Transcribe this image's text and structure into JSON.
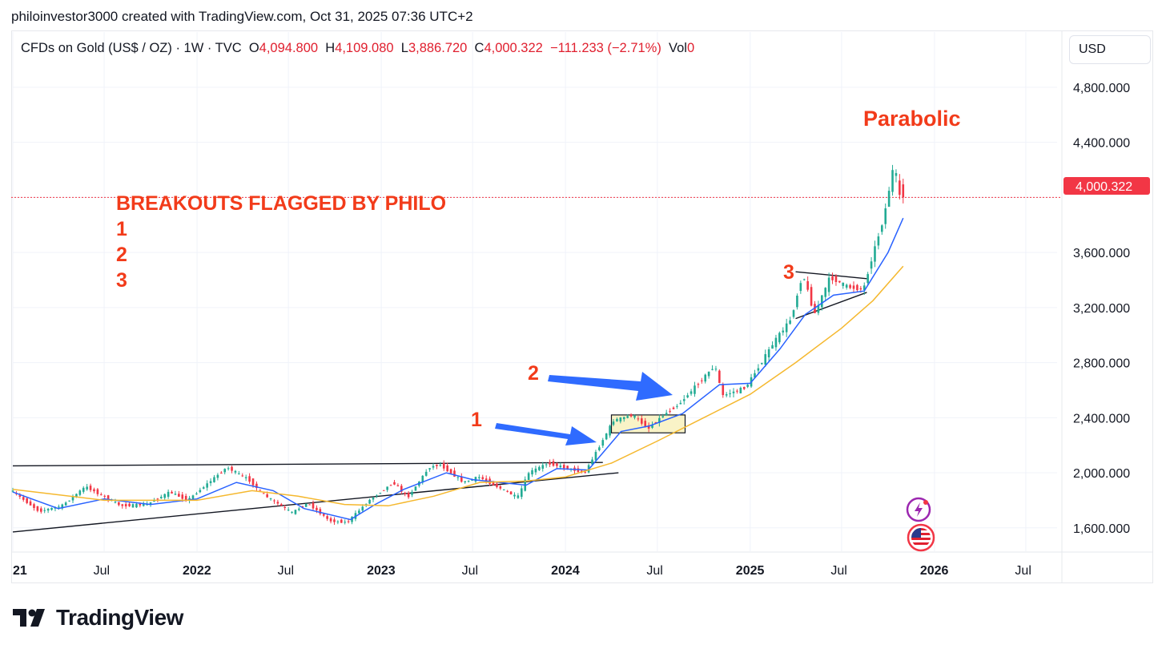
{
  "byline": "philoinvestor3000 created with TradingView.com, Oct 31, 2025 07:36 UTC+2",
  "legend": {
    "symbol": "CFDs on Gold (US$ / OZ) · 1W · TVC",
    "o_label": "O",
    "o_value": "4,094.800",
    "h_label": "H",
    "h_value": "4,109.080",
    "l_label": "L",
    "l_value": "3,886.720",
    "c_label": "C",
    "c_value": "4,000.322",
    "change": "−111.233 (−2.71%)",
    "vol_label": "Vol",
    "vol_value": "0"
  },
  "currency": "USD",
  "price_badge": "4,000.322",
  "footer_brand": "TradingView",
  "icons": [
    "lightning-icon",
    "us-flag-icon",
    "tradingview-logo-icon"
  ],
  "colors": {
    "up": "#22ab94",
    "down": "#f23645",
    "ma_fast": "#2962ff",
    "ma_slow": "#f5b82e",
    "annotation": "#f23b1a",
    "arrow": "#2f6bff",
    "price_line": "#f23645"
  },
  "annotations": {
    "headline": "BREAKOUTS FLAGGED BY PHILO",
    "list": [
      "1",
      "2",
      "3"
    ],
    "parabolic": "Parabolic",
    "marker_1": "1",
    "marker_2": "2",
    "marker_3": "3"
  },
  "chart_data": {
    "type": "candlestick",
    "interval": "1W",
    "y_axis": {
      "ticks": [
        1600,
        2000,
        2400,
        2800,
        3200,
        3600,
        4000,
        4400,
        4800
      ],
      "tick_labels": [
        "1,600.000",
        "2,000.000",
        "2,400.000",
        "2,800.000",
        "3,200.000",
        "3,600.000",
        "4,000.000",
        "4,400.000",
        "4,800.000"
      ],
      "shown_labels": [
        "1,600.000",
        "2,000.000",
        "2,400.000",
        "2,800.000",
        "3,200.000",
        "3,600.000",
        "4,400.000",
        "4,800.000"
      ],
      "range": [
        1430,
        4980
      ]
    },
    "x_axis": {
      "range": [
        "2021-01-01",
        "2026-09-01"
      ],
      "ticks": [
        {
          "label": "21",
          "date": "2021-01-01",
          "bold": true
        },
        {
          "label": "Jul",
          "date": "2021-07-01",
          "bold": false
        },
        {
          "label": "2022",
          "date": "2022-01-01",
          "bold": true
        },
        {
          "label": "Jul",
          "date": "2022-07-01",
          "bold": false
        },
        {
          "label": "2023",
          "date": "2023-01-01",
          "bold": true
        },
        {
          "label": "Jul",
          "date": "2023-07-01",
          "bold": false
        },
        {
          "label": "2024",
          "date": "2024-01-01",
          "bold": true
        },
        {
          "label": "Jul",
          "date": "2024-07-01",
          "bold": false
        },
        {
          "label": "2025",
          "date": "2025-01-01",
          "bold": true
        },
        {
          "label": "Jul",
          "date": "2025-07-01",
          "bold": false
        },
        {
          "label": "2026",
          "date": "2026-01-01",
          "bold": true
        },
        {
          "label": "Jul",
          "date": "2026-07-01",
          "bold": false
        }
      ]
    },
    "last_close": 4000.322,
    "price_path": [
      [
        "2021-01-01",
        1880
      ],
      [
        "2021-03-01",
        1720
      ],
      [
        "2021-04-15",
        1760
      ],
      [
        "2021-06-01",
        1900
      ],
      [
        "2021-08-10",
        1760
      ],
      [
        "2021-09-30",
        1770
      ],
      [
        "2021-11-15",
        1860
      ],
      [
        "2021-12-20",
        1800
      ],
      [
        "2022-03-08",
        2040
      ],
      [
        "2022-04-20",
        1950
      ],
      [
        "2022-05-20",
        1840
      ],
      [
        "2022-07-15",
        1710
      ],
      [
        "2022-08-15",
        1780
      ],
      [
        "2022-09-28",
        1650
      ],
      [
        "2022-11-01",
        1640
      ],
      [
        "2022-12-15",
        1800
      ],
      [
        "2023-02-01",
        1930
      ],
      [
        "2023-03-01",
        1820
      ],
      [
        "2023-04-13",
        2040
      ],
      [
        "2023-05-04",
        2060
      ],
      [
        "2023-06-20",
        1930
      ],
      [
        "2023-07-20",
        1970
      ],
      [
        "2023-10-05",
        1820
      ],
      [
        "2023-10-27",
        2000
      ],
      [
        "2023-12-04",
        2070
      ],
      [
        "2024-02-15",
        2000
      ],
      [
        "2024-04-12",
        2380
      ],
      [
        "2024-05-20",
        2420
      ],
      [
        "2024-06-20",
        2320
      ],
      [
        "2024-07-20",
        2420
      ],
      [
        "2024-08-20",
        2500
      ],
      [
        "2024-10-30",
        2780
      ],
      [
        "2024-11-14",
        2560
      ],
      [
        "2024-12-30",
        2620
      ],
      [
        "2025-02-24",
        2950
      ],
      [
        "2025-03-30",
        3120
      ],
      [
        "2025-04-22",
        3450
      ],
      [
        "2025-05-15",
        3150
      ],
      [
        "2025-06-15",
        3420
      ],
      [
        "2025-07-20",
        3350
      ],
      [
        "2025-08-20",
        3330
      ],
      [
        "2025-09-05",
        3550
      ],
      [
        "2025-09-30",
        3860
      ],
      [
        "2025-10-20",
        4250
      ],
      [
        "2025-10-31",
        4000
      ]
    ],
    "moving_averages": [
      {
        "color": "blue",
        "points": [
          [
            "2021-01-01",
            1860
          ],
          [
            "2021-04-01",
            1740
          ],
          [
            "2021-07-01",
            1810
          ],
          [
            "2021-10-01",
            1770
          ],
          [
            "2022-01-01",
            1810
          ],
          [
            "2022-03-20",
            1930
          ],
          [
            "2022-06-01",
            1870
          ],
          [
            "2022-08-01",
            1740
          ],
          [
            "2022-11-01",
            1660
          ],
          [
            "2022-12-20",
            1770
          ],
          [
            "2023-02-15",
            1880
          ],
          [
            "2023-05-10",
            2000
          ],
          [
            "2023-07-01",
            1950
          ],
          [
            "2023-10-15",
            1910
          ],
          [
            "2023-12-15",
            2030
          ],
          [
            "2024-02-15",
            2020
          ],
          [
            "2024-04-20",
            2300
          ],
          [
            "2024-06-15",
            2340
          ],
          [
            "2024-08-20",
            2430
          ],
          [
            "2024-11-01",
            2640
          ],
          [
            "2025-01-01",
            2650
          ],
          [
            "2025-03-01",
            2900
          ],
          [
            "2025-04-20",
            3150
          ],
          [
            "2025-06-15",
            3290
          ],
          [
            "2025-08-15",
            3320
          ],
          [
            "2025-10-01",
            3600
          ],
          [
            "2025-10-31",
            3850
          ]
        ]
      },
      {
        "color": "yellow",
        "points": [
          [
            "2021-01-01",
            1880
          ],
          [
            "2021-07-01",
            1800
          ],
          [
            "2022-01-01",
            1800
          ],
          [
            "2022-04-20",
            1870
          ],
          [
            "2022-07-20",
            1830
          ],
          [
            "2022-10-20",
            1770
          ],
          [
            "2023-01-15",
            1760
          ],
          [
            "2023-04-15",
            1830
          ],
          [
            "2023-07-15",
            1930
          ],
          [
            "2023-10-15",
            1940
          ],
          [
            "2024-01-01",
            1970
          ],
          [
            "2024-04-01",
            2070
          ],
          [
            "2024-07-01",
            2230
          ],
          [
            "2024-10-01",
            2400
          ],
          [
            "2025-01-01",
            2570
          ],
          [
            "2025-04-01",
            2800
          ],
          [
            "2025-07-01",
            3050
          ],
          [
            "2025-09-01",
            3250
          ],
          [
            "2025-10-31",
            3500
          ]
        ]
      }
    ],
    "trendlines": [
      {
        "name": "upper-resistance",
        "from": [
          "2021-01-01",
          2050
        ],
        "to": [
          "2024-03-15",
          2075
        ]
      },
      {
        "name": "rising-support",
        "from": [
          "2021-01-01",
          1570
        ],
        "to": [
          "2024-04-15",
          2000
        ]
      },
      {
        "name": "triangle-top",
        "from": [
          "2025-04-01",
          3460
        ],
        "to": [
          "2025-08-20",
          3410
        ]
      },
      {
        "name": "triangle-bottom",
        "from": [
          "2025-04-01",
          3120
        ],
        "to": [
          "2025-08-20",
          3310
        ]
      }
    ],
    "consolidation_box": {
      "from": [
        "2024-04-01",
        2290
      ],
      "to": [
        "2024-08-25",
        2420
      ]
    }
  }
}
